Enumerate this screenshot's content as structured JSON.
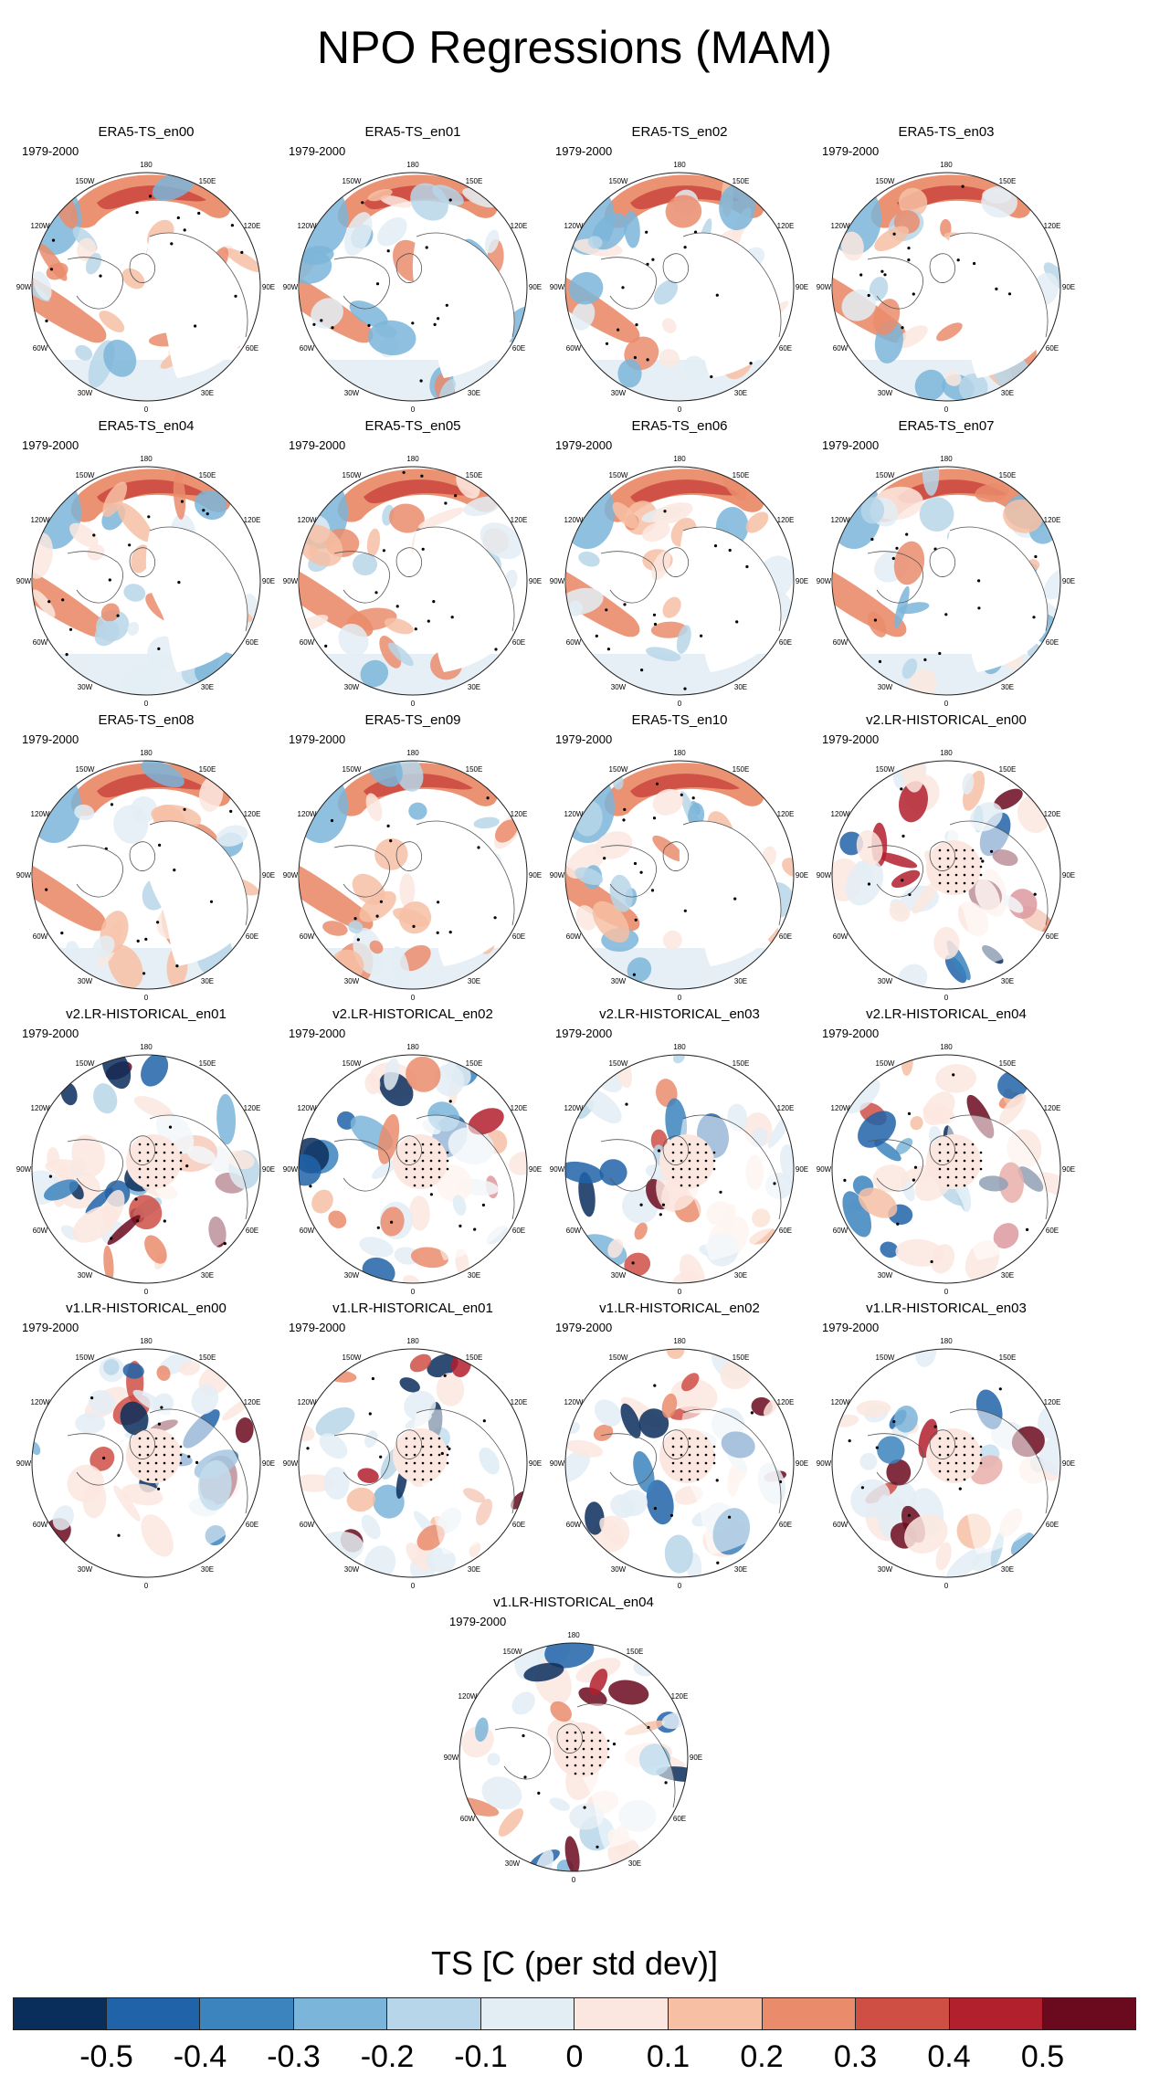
{
  "title": "NPO Regressions (MAM)",
  "chart_data": {
    "type": "heatmap",
    "title": "NPO Regressions (MAM)",
    "period": "1979-2000",
    "panels": [
      {
        "name": "ERA5-TS_en00",
        "stippled_arctic": false
      },
      {
        "name": "ERA5-TS_en01",
        "stippled_arctic": false
      },
      {
        "name": "ERA5-TS_en02",
        "stippled_arctic": false
      },
      {
        "name": "ERA5-TS_en03",
        "stippled_arctic": false
      },
      {
        "name": "ERA5-TS_en04",
        "stippled_arctic": false
      },
      {
        "name": "ERA5-TS_en05",
        "stippled_arctic": false
      },
      {
        "name": "ERA5-TS_en06",
        "stippled_arctic": false
      },
      {
        "name": "ERA5-TS_en07",
        "stippled_arctic": false
      },
      {
        "name": "ERA5-TS_en08",
        "stippled_arctic": false
      },
      {
        "name": "ERA5-TS_en09",
        "stippled_arctic": false
      },
      {
        "name": "ERA5-TS_en10",
        "stippled_arctic": false
      },
      {
        "name": "v2.LR-HISTORICAL_en00",
        "stippled_arctic": true
      },
      {
        "name": "v2.LR-HISTORICAL_en01",
        "stippled_arctic": true
      },
      {
        "name": "v2.LR-HISTORICAL_en02",
        "stippled_arctic": true
      },
      {
        "name": "v2.LR-HISTORICAL_en03",
        "stippled_arctic": true
      },
      {
        "name": "v2.LR-HISTORICAL_en04",
        "stippled_arctic": true
      },
      {
        "name": "v1.LR-HISTORICAL_en00",
        "stippled_arctic": true
      },
      {
        "name": "v1.LR-HISTORICAL_en01",
        "stippled_arctic": true
      },
      {
        "name": "v1.LR-HISTORICAL_en02",
        "stippled_arctic": true
      },
      {
        "name": "v1.LR-HISTORICAL_en03",
        "stippled_arctic": true
      },
      {
        "name": "v1.LR-HISTORICAL_en04",
        "stippled_arctic": true
      }
    ],
    "longitude_labels": [
      "180",
      "150E",
      "120E",
      "90E",
      "60E",
      "30E",
      "0",
      "30W",
      "60W",
      "90W",
      "120W",
      "150W"
    ],
    "colorbar": {
      "label": "TS [C (per std dev)]",
      "levels": [
        "-0.6",
        "-0.5",
        "-0.4",
        "-0.3",
        "-0.2",
        "-0.1",
        "0",
        "0.1",
        "0.2",
        "0.3",
        "0.4",
        "0.5",
        "0.6"
      ],
      "colors": [
        "#0a2e5c",
        "#2063a8",
        "#3b84bd",
        "#7bb5d9",
        "#b7d6e9",
        "#e3edf4",
        "#fbe7df",
        "#f7c0a5",
        "#ea8c6c",
        "#cf4f45",
        "#b21f2d",
        "#6b0a1f"
      ]
    }
  }
}
